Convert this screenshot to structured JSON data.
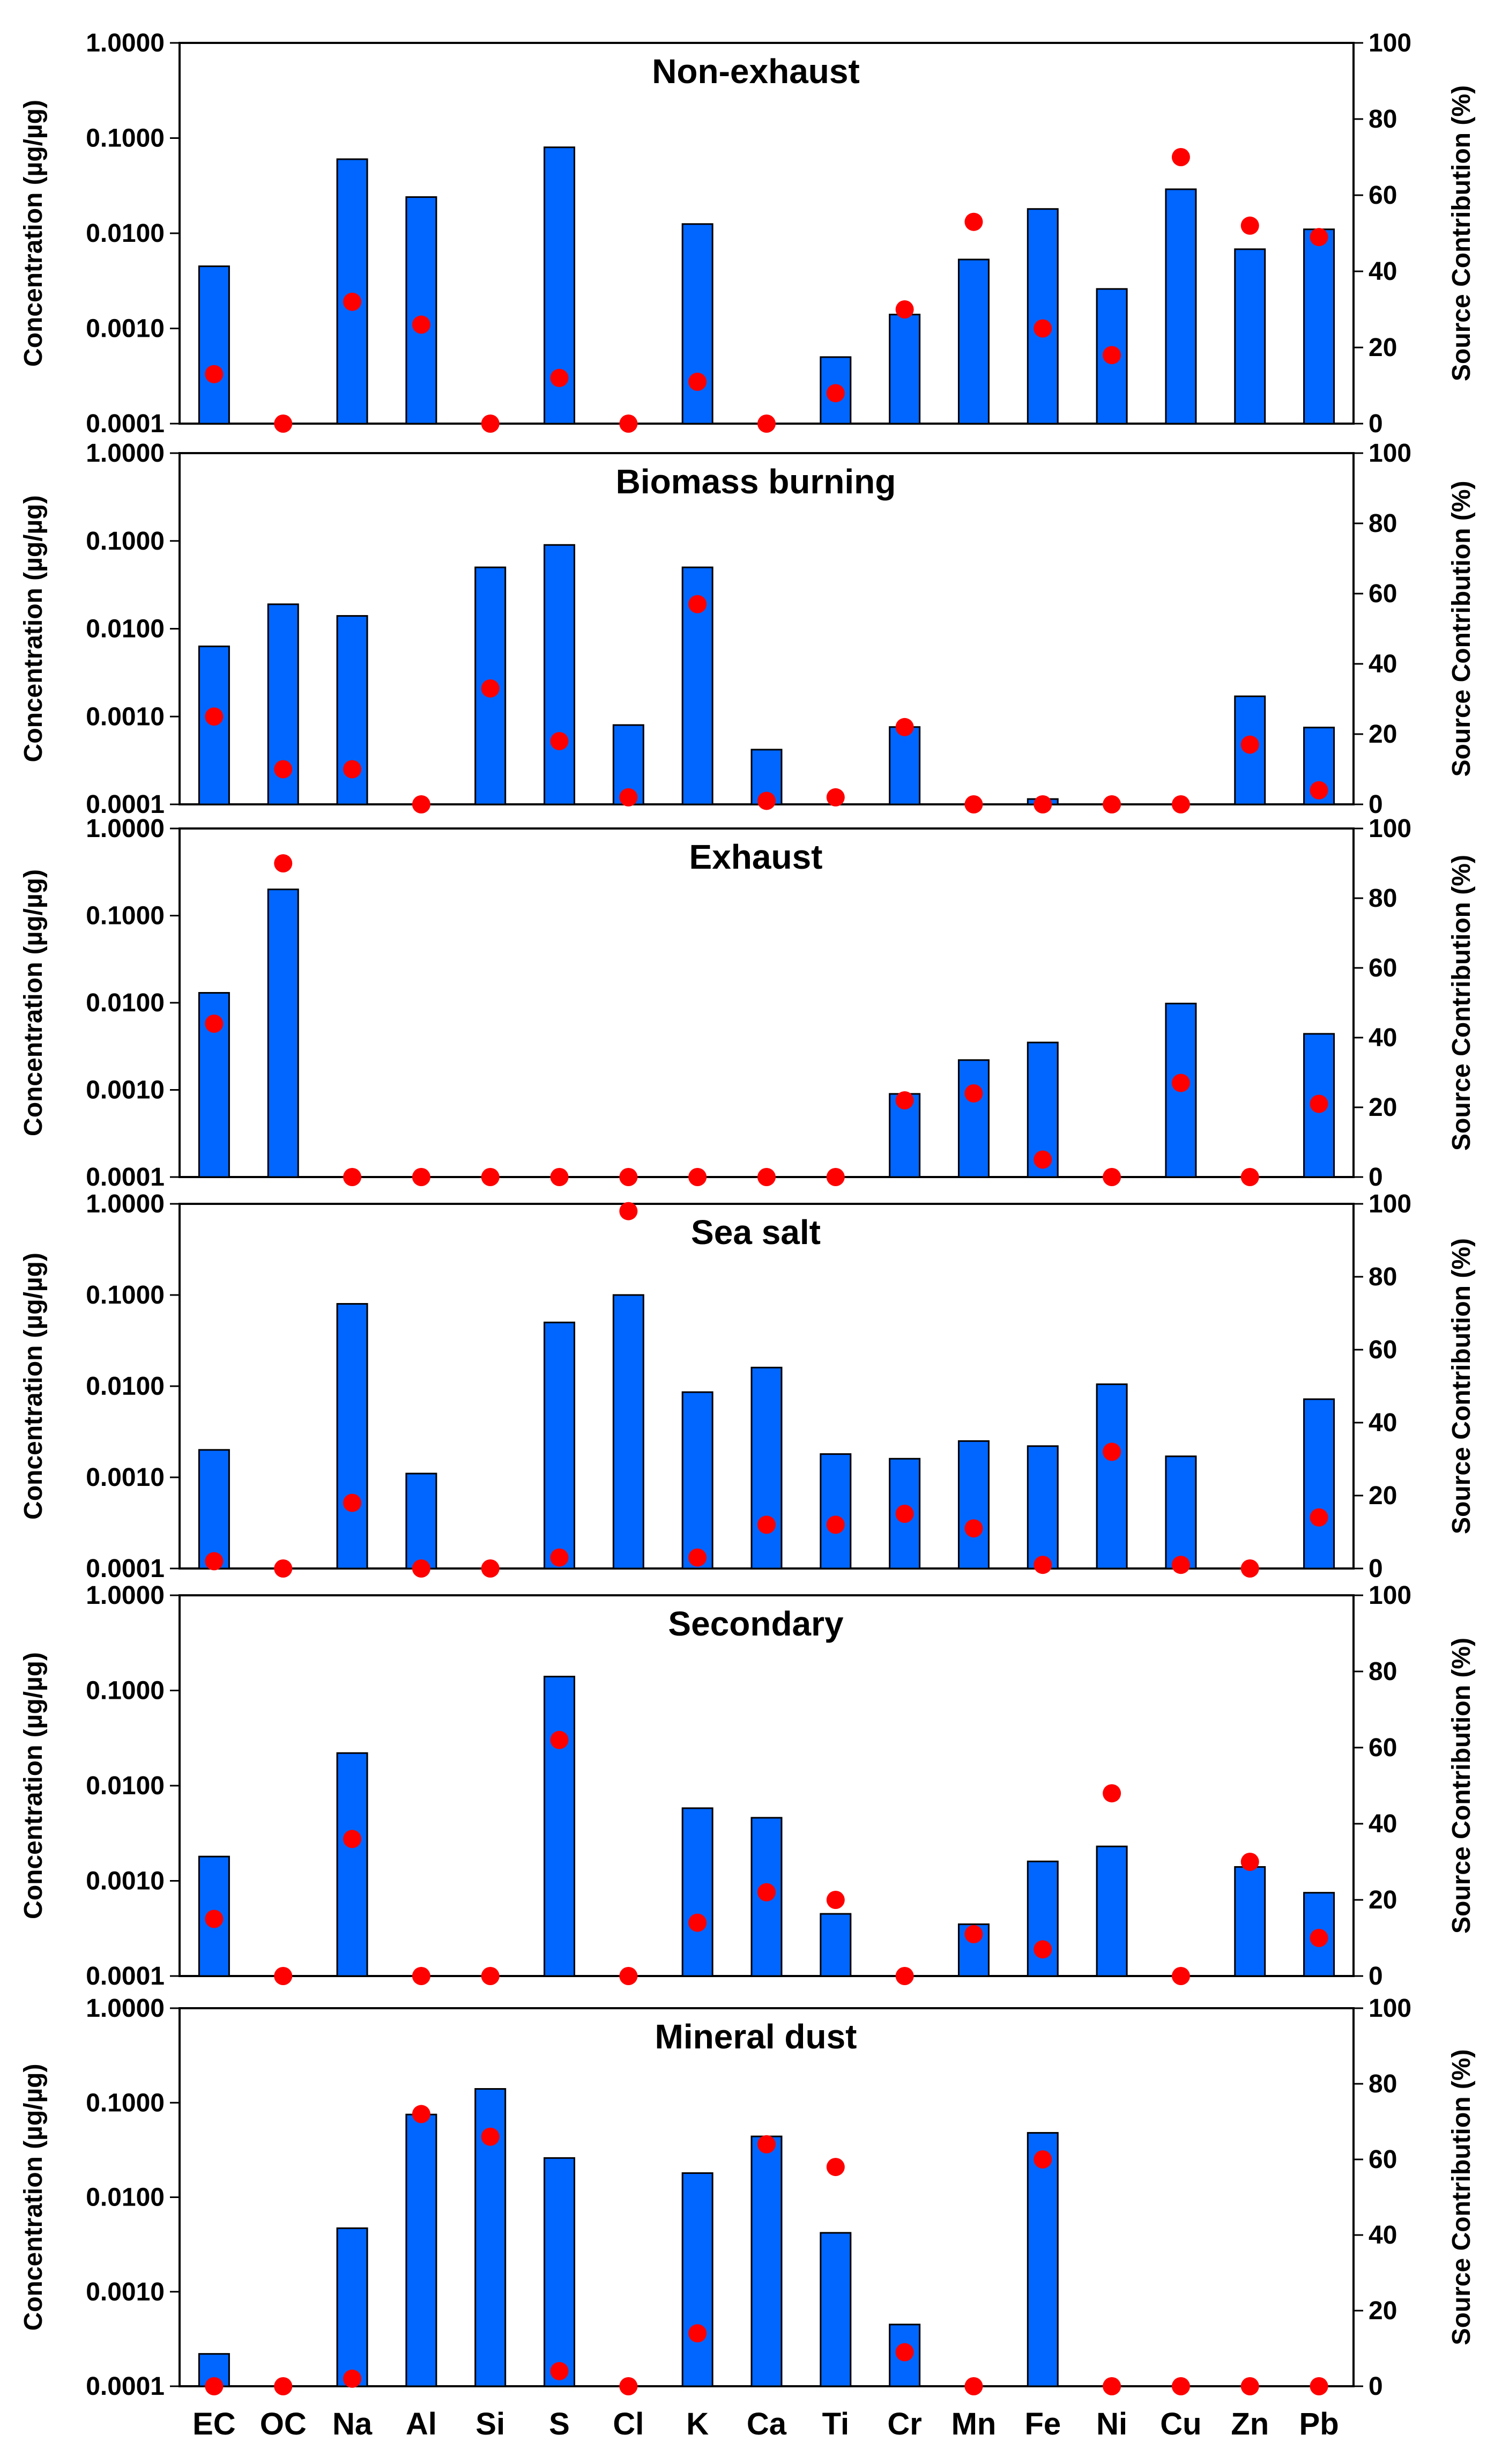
{
  "chart_data": {
    "type": "bar",
    "categories": [
      "EC",
      "OC",
      "Na",
      "Al",
      "Si",
      "S",
      "Cl",
      "K",
      "Ca",
      "Ti",
      "Cr",
      "Mn",
      "Fe",
      "Ni",
      "Cu",
      "Zn",
      "Pb"
    ],
    "ylabel_left": "Concentration (µg/µg)",
    "ylabel_right": "Source Contribution (%)",
    "left_scale": "log",
    "left_ylim": [
      0.0001,
      1.0
    ],
    "left_ticks": [
      "0.0001",
      "0.0010",
      "0.0100",
      "0.1000",
      "1.0000"
    ],
    "right_ylim": [
      0,
      100
    ],
    "right_ticks": [
      "0",
      "20",
      "40",
      "60",
      "80",
      "100"
    ],
    "bar_color": "#0066ff",
    "dot_color": "#ff0000",
    "panels": [
      {
        "title": "Non-exhaust",
        "concentration": [
          0.0045,
          null,
          0.06,
          0.024,
          null,
          0.08,
          null,
          0.0125,
          null,
          0.0005,
          0.0014,
          0.0053,
          0.018,
          0.0026,
          0.029,
          0.0068,
          0.011
        ],
        "contribution": [
          13,
          0,
          32,
          26,
          0,
          12,
          0,
          11,
          0,
          8,
          30,
          53,
          25,
          18,
          70,
          52,
          49
        ]
      },
      {
        "title": "Biomass burning",
        "concentration": [
          0.0063,
          0.019,
          0.014,
          null,
          0.05,
          0.09,
          0.0008,
          0.05,
          0.00042,
          null,
          0.00076,
          null,
          0.000115,
          null,
          null,
          0.0017,
          0.00075
        ],
        "contribution": [
          25,
          10,
          10,
          0,
          33,
          18,
          2,
          57,
          1,
          2,
          22,
          0,
          0,
          0,
          0,
          17,
          4
        ]
      },
      {
        "title": "Exhaust",
        "concentration": [
          0.013,
          0.2,
          null,
          null,
          null,
          null,
          null,
          null,
          null,
          null,
          0.0009,
          0.0022,
          0.0035,
          null,
          0.0098,
          0.0001,
          0.0044
        ],
        "contribution": [
          44,
          90,
          0,
          0,
          0,
          0,
          0,
          0,
          0,
          0,
          22,
          24,
          5,
          0,
          27,
          0,
          21
        ]
      },
      {
        "title": "Sea salt",
        "concentration": [
          0.002,
          null,
          0.08,
          0.0011,
          null,
          0.05,
          0.1,
          0.0086,
          0.016,
          0.0018,
          0.0016,
          0.0025,
          0.0022,
          0.0105,
          0.0017,
          null,
          0.0072
        ],
        "contribution": [
          2,
          0,
          18,
          0,
          0,
          3,
          98,
          3,
          12,
          12,
          15,
          11,
          1,
          32,
          1,
          0,
          14
        ]
      },
      {
        "title": "Secondary",
        "concentration": [
          0.0018,
          null,
          0.022,
          null,
          null,
          0.14,
          null,
          0.0058,
          0.0046,
          0.00045,
          null,
          0.00035,
          0.0016,
          0.0023,
          null,
          0.0014,
          0.00075
        ],
        "contribution": [
          15,
          0,
          36,
          0,
          0,
          62,
          0,
          14,
          22,
          20,
          0,
          11,
          7,
          48,
          0,
          30,
          10
        ]
      },
      {
        "title": "Mineral dust",
        "concentration": [
          0.00022,
          null,
          0.0047,
          0.075,
          0.14,
          0.026,
          null,
          0.018,
          0.044,
          0.0042,
          0.00045,
          null,
          0.048,
          null,
          null,
          null,
          null
        ],
        "contribution": [
          0,
          0,
          2,
          72,
          66,
          4,
          0,
          14,
          64,
          58,
          9,
          0,
          60,
          0,
          0,
          0,
          0
        ]
      }
    ]
  }
}
